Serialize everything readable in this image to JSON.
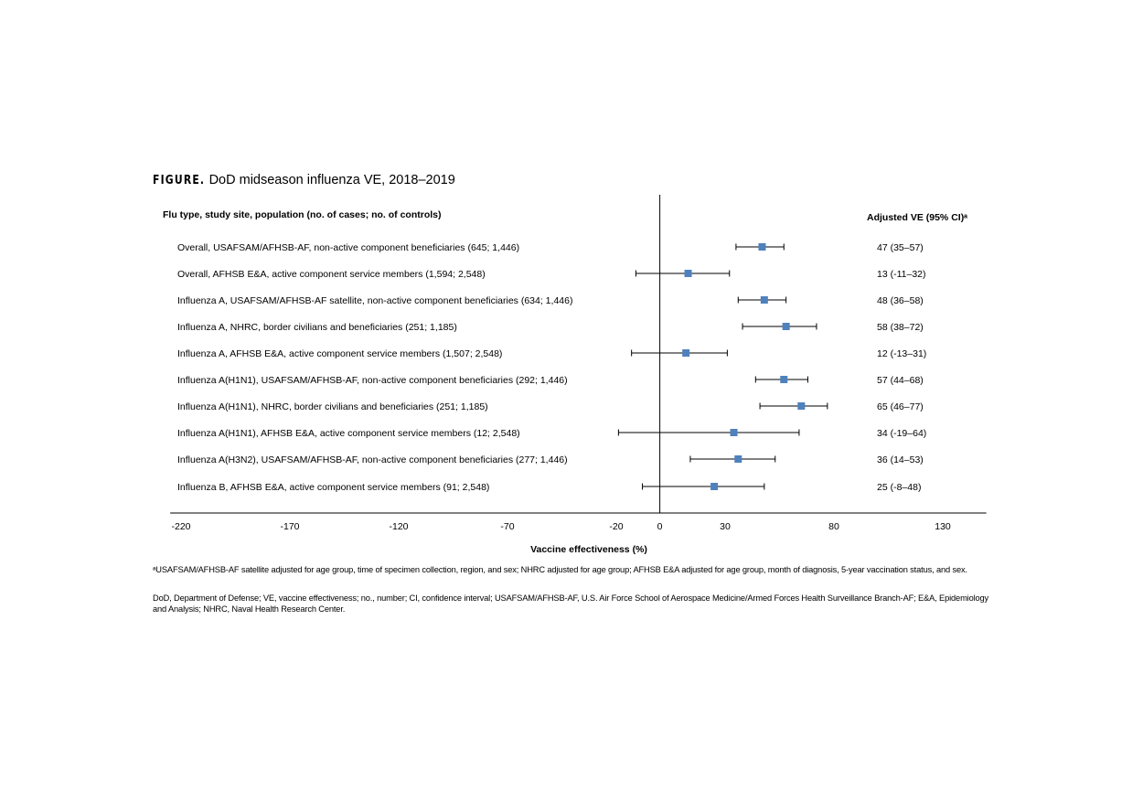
{
  "figure": {
    "label": "FIGURE.",
    "title": "DoD midseason influenza VE, 2018–2019"
  },
  "chart_data": {
    "type": "forest",
    "left_header": "Flu type, study site, population (no. of cases; no. of controls)",
    "right_header": "Adjusted VE (95% CI)ᵃ",
    "xlabel": "Vaccine effectiveness (%)",
    "xlim": [
      -225,
      150
    ],
    "xticks": [
      -220,
      -170,
      -120,
      -70,
      -20,
      0,
      30,
      80,
      130
    ],
    "reference_line": 0,
    "marker_color": "#4F81BD",
    "rows": [
      {
        "label": "Overall, USAFSAM/AFHSB-AF, non-active component beneficiaries (645; 1,446)",
        "ve": 47,
        "lo": 35,
        "hi": 57,
        "text": "47 (35–57)"
      },
      {
        "label": "Overall, AFHSB E&A, active component service members (1,594; 2,548)",
        "ve": 13,
        "lo": -11,
        "hi": 32,
        "text": "13 (-11–32)"
      },
      {
        "label": "Influenza A, USAFSAM/AFHSB-AF satellite, non-active component beneficiaries (634; 1,446)",
        "ve": 48,
        "lo": 36,
        "hi": 58,
        "text": "48 (36–58)"
      },
      {
        "label": "Influenza A, NHRC, border civilians and beneficiaries (251; 1,185)",
        "ve": 58,
        "lo": 38,
        "hi": 72,
        "text": "58 (38–72)"
      },
      {
        "label": "Influenza A, AFHSB E&A, active component service members (1,507; 2,548)",
        "ve": 12,
        "lo": -13,
        "hi": 31,
        "text": "12 (-13–31)"
      },
      {
        "label": "Influenza A(H1N1), USAFSAM/AFHSB-AF, non-active component beneficiaries (292; 1,446)",
        "ve": 57,
        "lo": 44,
        "hi": 68,
        "text": "57 (44–68)"
      },
      {
        "label": "Influenza A(H1N1), NHRC, border civilians and beneficiaries (251; 1,185)",
        "ve": 65,
        "lo": 46,
        "hi": 77,
        "text": "65 (46–77)"
      },
      {
        "label": "Influenza A(H1N1), AFHSB E&A, active component service members (12; 2,548)",
        "ve": 34,
        "lo": -19,
        "hi": 64,
        "text": "34 (-19–64)"
      },
      {
        "label": "Influenza A(H3N2), USAFSAM/AFHSB-AF, non-active component beneficiaries (277; 1,446)",
        "ve": 36,
        "lo": 14,
        "hi": 53,
        "text": "36 (14–53)"
      },
      {
        "label": "Influenza B, AFHSB E&A, active component service members (91; 2,548)",
        "ve": 25,
        "lo": -8,
        "hi": 48,
        "text": "25 (-8–48)"
      }
    ]
  },
  "footnotes": {
    "a": "ᵃUSAFSAM/AFHSB-AF satellite adjusted for age group, time of specimen collection, region, and sex; NHRC adjusted for age group; AFHSB E&A adjusted for age group, month of diagnosis, 5-year vaccination status, and sex.",
    "abbreviations": "DoD, Department of Defense; VE, vaccine effectiveness; no., number; CI, confidence interval; USAFSAM/AFHSB-AF, U.S. Air Force School of Aerospace Medicine/Armed Forces Health Surveillance Branch-AF; E&A, Epidemiology and Analysis; NHRC, Naval Health Research Center."
  }
}
